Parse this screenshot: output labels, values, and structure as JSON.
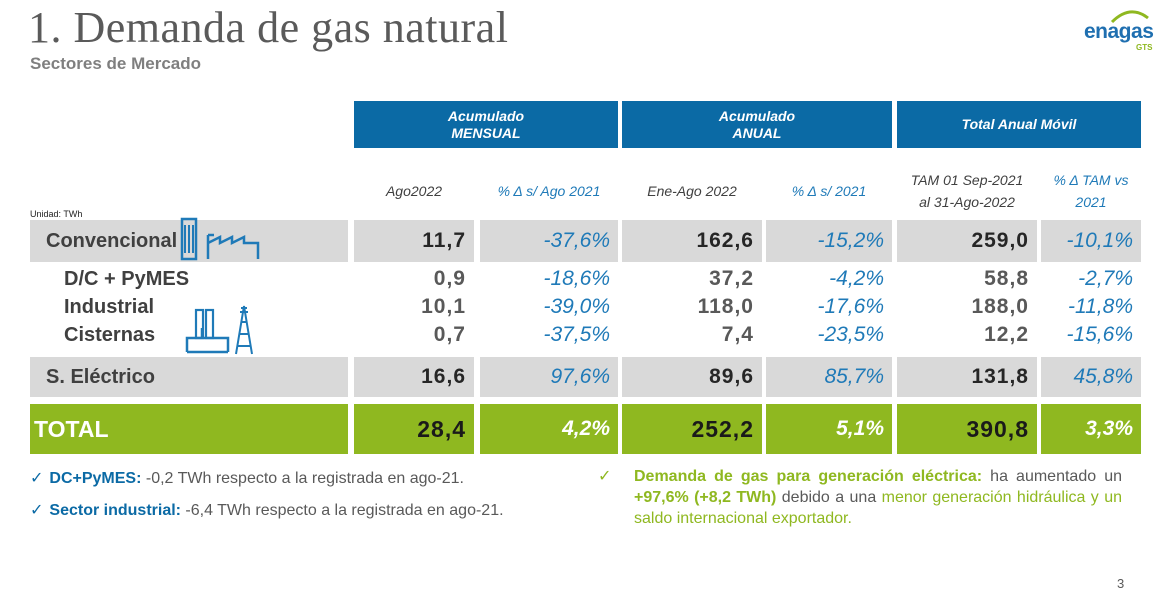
{
  "header": {
    "title": "1. Demanda de gas natural",
    "subtitle": "Sectores de Mercado",
    "logo_text": "enagas",
    "logo_sub": "GTS",
    "page_number": "3"
  },
  "table": {
    "group_headers": [
      {
        "line1": "Acumulado",
        "line2": "MENSUAL"
      },
      {
        "line1": "Acumulado",
        "line2": "ANUAL"
      },
      {
        "line1": "Total Anual Móvil",
        "line2": ""
      }
    ],
    "sub_headers": [
      {
        "line1": "Ago2022",
        "line2": ""
      },
      {
        "line1": "% Δ s/ Ago 2021",
        "line2": ""
      },
      {
        "line1": "Ene-Ago 2022",
        "line2": ""
      },
      {
        "line1": "% Δ s/ 2021",
        "line2": ""
      },
      {
        "line1": "TAM 01 Sep-2021",
        "line2": "al 31-Ago-2022"
      },
      {
        "line1": "% Δ TAM vs",
        "line2": "2021"
      }
    ],
    "unit": "Unidad: TWh",
    "rows": [
      {
        "label": "Convencional",
        "values": [
          "11,7",
          "-37,6%",
          "162,6",
          "-15,2%",
          "259,0",
          "-10,1%"
        ]
      },
      {
        "label": "D/C + PyMES",
        "values": [
          "0,9",
          "-18,6%",
          "37,2",
          "-4,2%",
          "58,8",
          "-2,7%"
        ]
      },
      {
        "label": "Industrial",
        "values": [
          "10,1",
          "-39,0%",
          "118,0",
          "-17,6%",
          "188,0",
          "-11,8%"
        ]
      },
      {
        "label": "Cisternas",
        "values": [
          "0,7",
          "-37,5%",
          "7,4",
          "-23,5%",
          "12,2",
          "-15,6%"
        ]
      },
      {
        "label": "S. Eléctrico",
        "values": [
          "16,6",
          "97,6%",
          "89,6",
          "85,7%",
          "131,8",
          "45,8%"
        ]
      },
      {
        "label": "TOTAL",
        "values": [
          "28,4",
          "4,2%",
          "252,2",
          "5,1%",
          "390,8",
          "3,3%"
        ]
      }
    ]
  },
  "notes": {
    "left": [
      {
        "bold": "DC+PyMES:",
        "rest": " -0,2 TWh respecto a la registrada en ago-21."
      },
      {
        "bold": "Sector industrial:",
        "rest": " -6,4 TWh respecto a la registrada en ago-21."
      }
    ],
    "right": {
      "bold": "Demanda de gas para generación eléctrica:",
      "part1": " ha aumentado un ",
      "highlight": "+97,6% (+8,2 TWh)",
      "part2": " debido a una ",
      "green": "menor generación hidráulica y un saldo internacional exportador."
    }
  },
  "colors": {
    "header_blue": "#0b6aa5",
    "total_green": "#8fb820",
    "pct_blue": "#1f7ab8",
    "grey": "#d9d9d9"
  },
  "icons": [
    "factory-icon",
    "power-plant-icon"
  ]
}
